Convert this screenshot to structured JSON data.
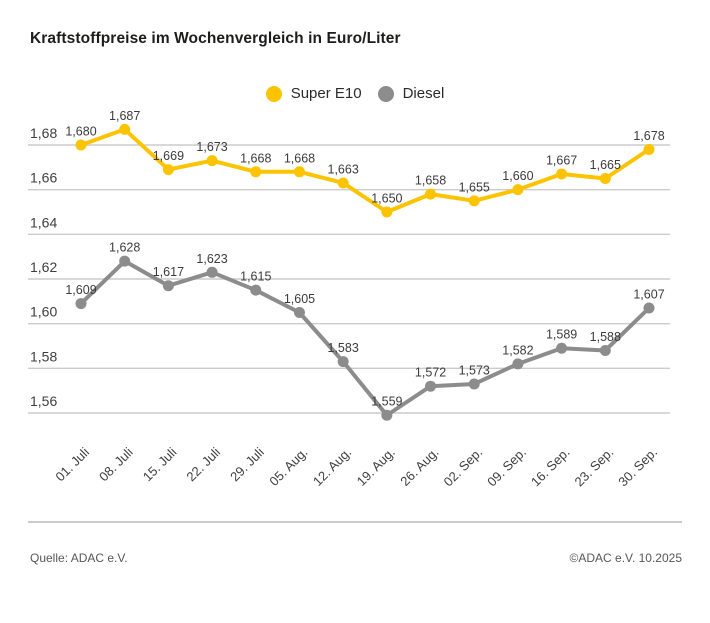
{
  "header": {
    "title": "Kraftstoffpreise im Wochenvergleich in Euro/Liter"
  },
  "footer": {
    "source": "Quelle: ADAC e.V.",
    "copyright": "©ADAC e.V. 10.2025"
  },
  "chart_data": {
    "type": "line",
    "title": "Kraftstoffpreise im Wochenvergleich in Euro/Liter",
    "unit": "Euro/Liter",
    "grid": true,
    "legend_position": "top-center",
    "grid_color": "#cccccc",
    "axis_text_color": "#3f3f3f",
    "data_label_color": "#3c3c3c",
    "categories": [
      "01. Juli",
      "08. Juli",
      "15. Juli",
      "22. Juli",
      "29. Juli",
      "05. Aug.",
      "12. Aug.",
      "19. Aug.",
      "26. Aug.",
      "02. Sep.",
      "09. Sep.",
      "16. Sep.",
      "23. Sep.",
      "30. Sep."
    ],
    "series": [
      {
        "name": "Super E10",
        "color": "#fcc400",
        "values": [
          1.68,
          1.687,
          1.669,
          1.673,
          1.668,
          1.668,
          1.663,
          1.65,
          1.658,
          1.655,
          1.66,
          1.667,
          1.665,
          1.678
        ],
        "labels": [
          "1,680",
          "1,687",
          "1,669",
          "1,673",
          "1,668",
          "1,668",
          "1,663",
          "1,650",
          "1,658",
          "1,655",
          "1,660",
          "1,667",
          "1,665",
          "1,678"
        ]
      },
      {
        "name": "Diesel",
        "color": "#8c8c8c",
        "values": [
          1.609,
          1.628,
          1.617,
          1.623,
          1.615,
          1.605,
          1.583,
          1.559,
          1.572,
          1.573,
          1.582,
          1.589,
          1.588,
          1.607
        ],
        "labels": [
          "1,609",
          "1,628",
          "1,617",
          "1,623",
          "1,615",
          "1,605",
          "1,583",
          "1,559",
          "1,572",
          "1,573",
          "1,582",
          "1,589",
          "1,588",
          "1,607"
        ]
      }
    ],
    "y_ticks": [
      {
        "value": 1.68,
        "label": "1,68"
      },
      {
        "value": 1.66,
        "label": "1,66"
      },
      {
        "value": 1.64,
        "label": "1,64"
      },
      {
        "value": 1.62,
        "label": "1,62"
      },
      {
        "value": 1.6,
        "label": "1,60"
      },
      {
        "value": 1.58,
        "label": "1,58"
      },
      {
        "value": 1.56,
        "label": "1,56"
      }
    ],
    "ylim": [
      1.55,
      1.7
    ]
  }
}
